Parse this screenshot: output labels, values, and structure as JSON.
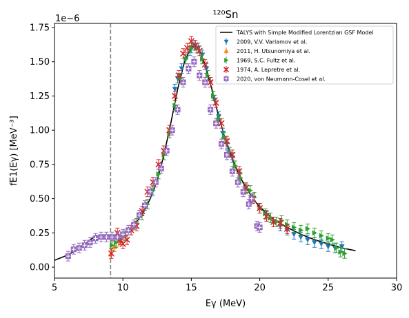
{
  "chart_data": {
    "type": "scatter",
    "title": "¹²⁰Sn",
    "xlabel": "Eγ (MeV)",
    "ylabel": "fE1(Eγ) [MeV⁻³]",
    "offset_text": "1e−6",
    "xlim": [
      5,
      30
    ],
    "ylim": [
      -0.08,
      1.78
    ],
    "x_ticks": [
      5,
      10,
      15,
      20,
      25,
      30
    ],
    "y_ticks": [
      0.0,
      0.25,
      0.5,
      0.75,
      1.0,
      1.25,
      1.5,
      1.75
    ],
    "y_tick_labels": [
      "0.00",
      "0.25",
      "0.50",
      "0.75",
      "1.00",
      "1.25",
      "1.50",
      "1.75"
    ],
    "grid": false,
    "legend_position": "top-right",
    "vline": {
      "x": 9.1,
      "color": "#808080",
      "style": "dashed"
    },
    "series": [
      {
        "name": "TALYS with Simple Modified Lorentzian GSF Model",
        "kind": "line",
        "color": "#000000",
        "points": [
          [
            5,
            0.05
          ],
          [
            5.5,
            0.07
          ],
          [
            6,
            0.09
          ],
          [
            6.5,
            0.12
          ],
          [
            7,
            0.15
          ],
          [
            7.5,
            0.19
          ],
          [
            8,
            0.23
          ],
          [
            8.5,
            0.22
          ],
          [
            9,
            0.21
          ],
          [
            9.5,
            0.22
          ],
          [
            10,
            0.24
          ],
          [
            10.5,
            0.28
          ],
          [
            11,
            0.33
          ],
          [
            11.5,
            0.4
          ],
          [
            12,
            0.5
          ],
          [
            12.5,
            0.63
          ],
          [
            13,
            0.82
          ],
          [
            13.5,
            1.05
          ],
          [
            14,
            1.3
          ],
          [
            14.5,
            1.5
          ],
          [
            15,
            1.61
          ],
          [
            15.3,
            1.62
          ],
          [
            15.6,
            1.58
          ],
          [
            16,
            1.48
          ],
          [
            16.5,
            1.3
          ],
          [
            17,
            1.1
          ],
          [
            17.5,
            0.93
          ],
          [
            18,
            0.79
          ],
          [
            18.5,
            0.67
          ],
          [
            19,
            0.58
          ],
          [
            19.5,
            0.5
          ],
          [
            20,
            0.44
          ],
          [
            21,
            0.35
          ],
          [
            22,
            0.29
          ],
          [
            23,
            0.24
          ],
          [
            24,
            0.2
          ],
          [
            25,
            0.17
          ],
          [
            26,
            0.14
          ],
          [
            27,
            0.12
          ]
        ]
      },
      {
        "name": "2009, V.V. Varlamov et al.",
        "kind": "scatter",
        "marker": "triangle-down",
        "color": "#1f77b4",
        "points": [
          [
            13.8,
            1.3
          ],
          [
            14.0,
            1.38
          ],
          [
            14.3,
            1.45
          ],
          [
            14.6,
            1.52
          ],
          [
            14.9,
            1.58
          ],
          [
            15.2,
            1.62
          ],
          [
            15.5,
            1.6
          ],
          [
            15.8,
            1.55
          ],
          [
            16.1,
            1.45
          ],
          [
            16.4,
            1.35
          ],
          [
            16.7,
            1.22
          ],
          [
            17.0,
            1.1
          ],
          [
            17.3,
            0.98
          ],
          [
            17.6,
            0.9
          ],
          [
            18.0,
            0.8
          ],
          [
            18.5,
            0.68
          ],
          [
            19.0,
            0.58
          ],
          [
            19.5,
            0.5
          ],
          [
            20.0,
            0.43
          ],
          [
            20.5,
            0.38
          ],
          [
            21.0,
            0.33
          ],
          [
            21.5,
            0.3
          ],
          [
            22.0,
            0.27
          ],
          [
            22.5,
            0.24
          ],
          [
            23.0,
            0.22
          ],
          [
            23.5,
            0.2
          ],
          [
            24.0,
            0.18
          ],
          [
            24.5,
            0.17
          ],
          [
            25.0,
            0.15
          ],
          [
            25.5,
            0.14
          ],
          [
            26.0,
            0.15
          ]
        ]
      },
      {
        "name": "2011, H. Utsunomiya et al.",
        "kind": "scatter",
        "marker": "triangle-up",
        "color": "#ff7f0e",
        "points": [
          [
            9.15,
            0.1
          ],
          [
            9.4,
            0.15
          ],
          [
            9.7,
            0.19
          ]
        ]
      },
      {
        "name": "1969, S.C. Fultz et al.",
        "kind": "scatter",
        "marker": "triangle-right",
        "color": "#2ca02c",
        "points": [
          [
            9.2,
            0.16
          ],
          [
            9.5,
            0.18
          ],
          [
            9.8,
            0.2
          ],
          [
            10.2,
            0.23
          ],
          [
            10.6,
            0.27
          ],
          [
            11.0,
            0.32
          ],
          [
            11.4,
            0.38
          ],
          [
            11.8,
            0.46
          ],
          [
            12.2,
            0.56
          ],
          [
            12.6,
            0.68
          ],
          [
            13.0,
            0.82
          ],
          [
            13.4,
            0.98
          ],
          [
            13.8,
            1.18
          ],
          [
            14.2,
            1.38
          ],
          [
            14.6,
            1.52
          ],
          [
            15.0,
            1.6
          ],
          [
            15.4,
            1.6
          ],
          [
            15.8,
            1.52
          ],
          [
            16.2,
            1.4
          ],
          [
            16.6,
            1.25
          ],
          [
            17.0,
            1.08
          ],
          [
            17.4,
            0.95
          ],
          [
            17.8,
            0.84
          ],
          [
            18.2,
            0.74
          ],
          [
            18.6,
            0.65
          ],
          [
            19.0,
            0.57
          ],
          [
            19.3,
            0.56
          ],
          [
            19.6,
            0.51
          ],
          [
            20.0,
            0.43
          ],
          [
            20.4,
            0.39
          ],
          [
            20.8,
            0.36
          ],
          [
            21.2,
            0.33
          ],
          [
            21.6,
            0.34
          ],
          [
            22.0,
            0.31
          ],
          [
            22.5,
            0.29
          ],
          [
            23.0,
            0.27
          ],
          [
            23.5,
            0.28
          ],
          [
            24.0,
            0.25
          ],
          [
            24.5,
            0.23
          ],
          [
            25.0,
            0.21
          ],
          [
            25.3,
            0.2
          ],
          [
            25.6,
            0.14
          ],
          [
            25.9,
            0.11
          ],
          [
            26.2,
            0.1
          ]
        ]
      },
      {
        "name": "1974, A. Lepretre et al.",
        "kind": "scatter",
        "marker": "x",
        "color": "#d62728",
        "points": [
          [
            9.15,
            0.1
          ],
          [
            9.6,
            0.25
          ],
          [
            9.8,
            0.2
          ],
          [
            10.0,
            0.17
          ],
          [
            10.3,
            0.2
          ],
          [
            10.6,
            0.27
          ],
          [
            11.0,
            0.3
          ],
          [
            11.4,
            0.41
          ],
          [
            11.8,
            0.55
          ],
          [
            12.2,
            0.62
          ],
          [
            12.6,
            0.75
          ],
          [
            13.0,
            0.85
          ],
          [
            13.4,
            1.0
          ],
          [
            13.8,
            1.25
          ],
          [
            14.1,
            1.4
          ],
          [
            14.4,
            1.56
          ],
          [
            14.7,
            1.6
          ],
          [
            15.0,
            1.65
          ],
          [
            15.3,
            1.62
          ],
          [
            15.6,
            1.58
          ],
          [
            16.0,
            1.48
          ],
          [
            16.4,
            1.35
          ],
          [
            16.8,
            1.2
          ],
          [
            17.2,
            1.05
          ],
          [
            17.6,
            0.92
          ],
          [
            18.0,
            0.82
          ],
          [
            18.5,
            0.7
          ],
          [
            19.0,
            0.58
          ],
          [
            19.5,
            0.5
          ],
          [
            20.0,
            0.43
          ],
          [
            20.5,
            0.37
          ],
          [
            21.0,
            0.33
          ],
          [
            21.5,
            0.32
          ],
          [
            22.0,
            0.28
          ]
        ]
      },
      {
        "name": "2020, von Neumann-Cosel et al.",
        "kind": "scatter",
        "marker": "square-plus",
        "color": "#9467bd",
        "points": [
          [
            6.0,
            0.08
          ],
          [
            6.4,
            0.13
          ],
          [
            6.8,
            0.14
          ],
          [
            7.2,
            0.16
          ],
          [
            7.6,
            0.18
          ],
          [
            8.0,
            0.21
          ],
          [
            8.4,
            0.22
          ],
          [
            8.8,
            0.22
          ],
          [
            9.2,
            0.22
          ],
          [
            9.6,
            0.22
          ],
          [
            10.0,
            0.24
          ],
          [
            10.4,
            0.27
          ],
          [
            10.8,
            0.31
          ],
          [
            11.2,
            0.38
          ],
          [
            11.6,
            0.45
          ],
          [
            12.0,
            0.55
          ],
          [
            12.4,
            0.62
          ],
          [
            12.8,
            0.72
          ],
          [
            13.2,
            0.85
          ],
          [
            13.6,
            1.0
          ],
          [
            14.0,
            1.15
          ],
          [
            14.4,
            1.35
          ],
          [
            14.8,
            1.45
          ],
          [
            15.2,
            1.5
          ],
          [
            15.6,
            1.4
          ],
          [
            16.0,
            1.35
          ],
          [
            16.4,
            1.15
          ],
          [
            16.8,
            1.05
          ],
          [
            17.2,
            0.9
          ],
          [
            17.6,
            0.82
          ],
          [
            18.0,
            0.7
          ],
          [
            18.4,
            0.62
          ],
          [
            18.8,
            0.55
          ],
          [
            19.2,
            0.46
          ],
          [
            19.4,
            0.5
          ],
          [
            19.8,
            0.3
          ],
          [
            20.0,
            0.29
          ]
        ]
      }
    ]
  }
}
